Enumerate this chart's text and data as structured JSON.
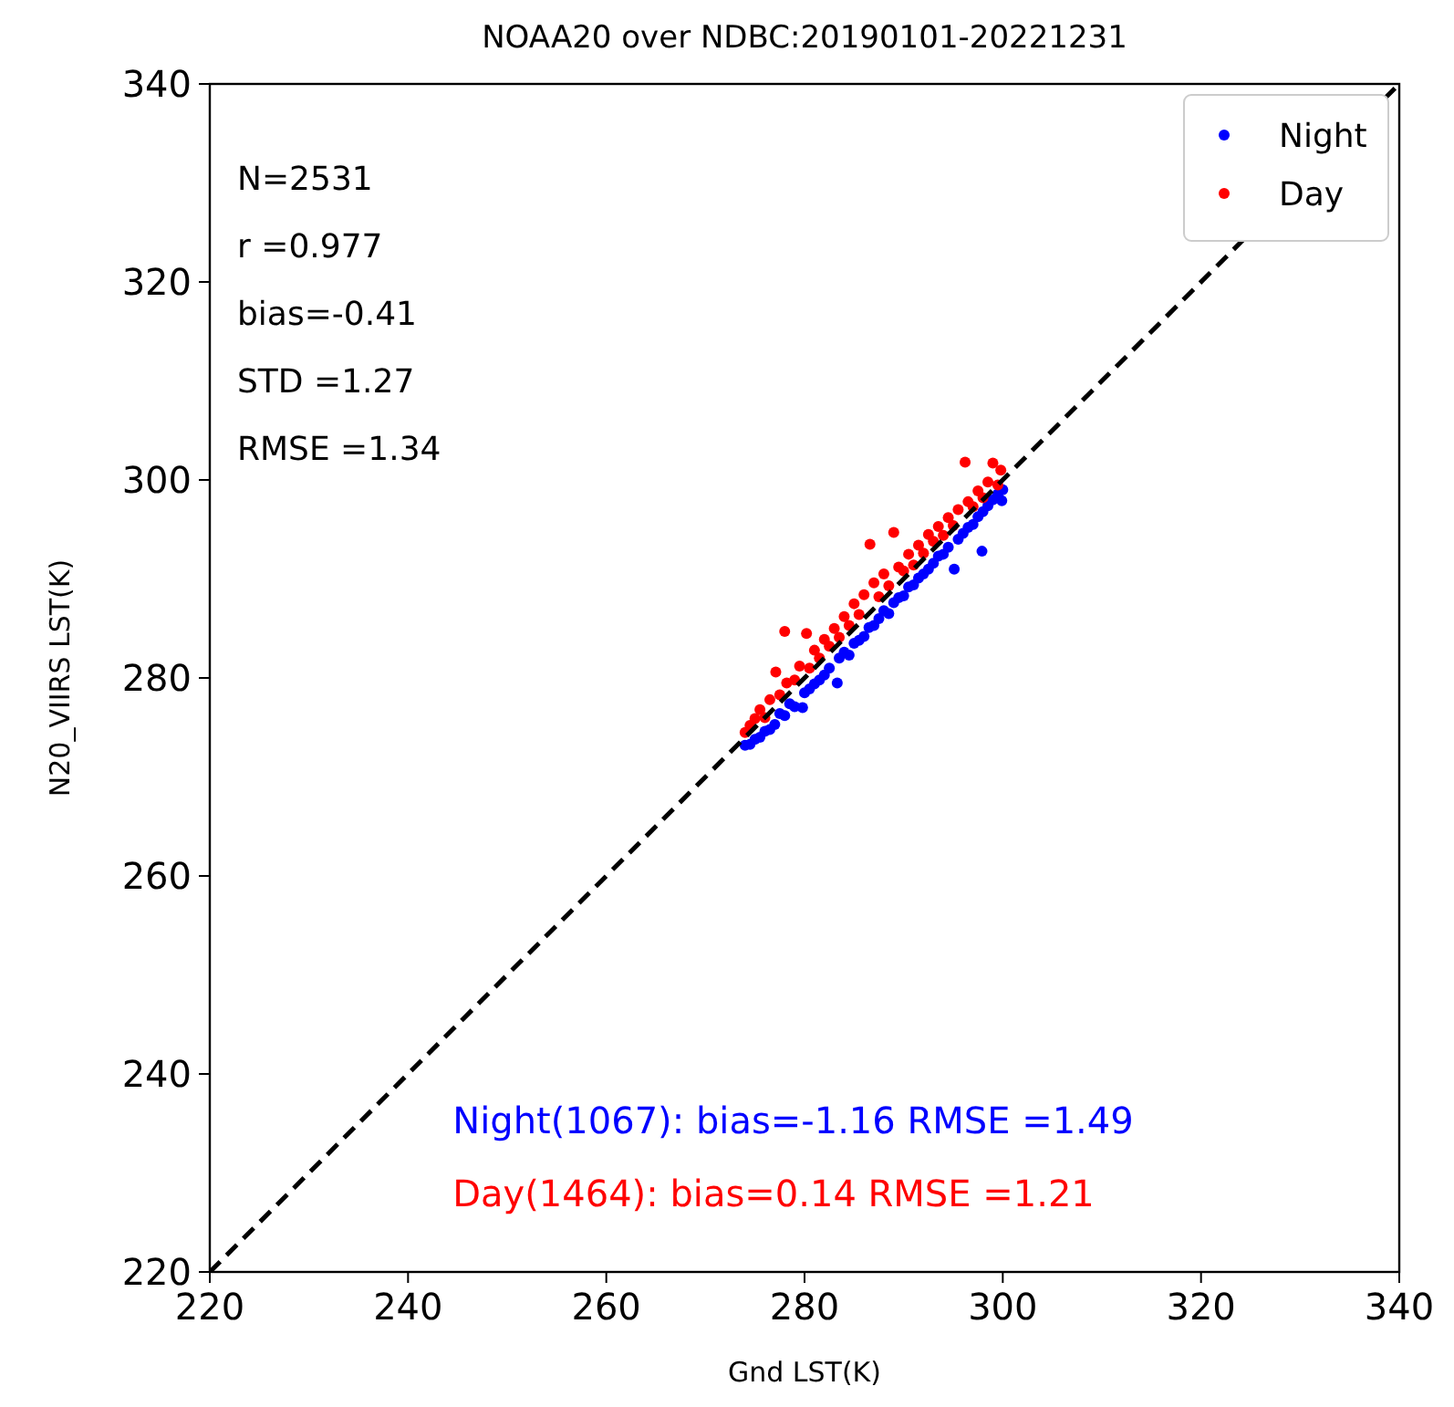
{
  "chart_data": {
    "type": "scatter",
    "title": "NOAA20 over NDBC:20190101-20221231",
    "xlabel": "Gnd LST(K)",
    "ylabel": "N20_VIIRS LST(K)",
    "xlim": [
      220,
      340
    ],
    "ylim": [
      220,
      340
    ],
    "xticks": [
      220,
      240,
      260,
      280,
      300,
      320,
      340
    ],
    "yticks": [
      220,
      240,
      260,
      280,
      300,
      320,
      340
    ],
    "grid": false,
    "legend": "top right",
    "marker": "circle",
    "annotations": [
      "N=2531",
      "r =0.977",
      "bias=-0.41",
      "STD =1.27",
      "RMSE =1.34",
      "Night(1067): bias=-1.16 RMSE =1.49",
      "Day(1464): bias=0.14 RMSE =1.21"
    ],
    "series": [
      {
        "name": "Night",
        "color": "#0000ff",
        "x": [
          274.0,
          274.5,
          275.0,
          275.5,
          276.0,
          276.5,
          277.0,
          277.5,
          278.0,
          278.5,
          279.0,
          279.8,
          280.0,
          280.5,
          281.0,
          281.5,
          282.0,
          282.5,
          283.3,
          283.5,
          284.0,
          284.5,
          285.0,
          285.5,
          286.0,
          286.5,
          287.0,
          287.5,
          288.0,
          288.5,
          289.0,
          289.5,
          290.0,
          290.5,
          291.0,
          291.5,
          292.0,
          292.5,
          293.0,
          293.5,
          294.0,
          294.5,
          295.1,
          295.5,
          296.0,
          296.5,
          297.0,
          297.5,
          297.9,
          298.0,
          298.5,
          299.0,
          299.5,
          299.9,
          300.0
        ],
        "values": [
          273.2,
          273.3,
          273.8,
          274.0,
          274.6,
          274.8,
          275.3,
          276.4,
          276.2,
          277.4,
          277.1,
          277.0,
          278.5,
          278.9,
          279.4,
          279.8,
          280.3,
          281.0,
          279.5,
          282.0,
          282.6,
          282.3,
          283.5,
          283.8,
          284.2,
          285.1,
          285.3,
          286.0,
          286.8,
          286.5,
          287.6,
          288.1,
          288.3,
          289.2,
          289.4,
          290.1,
          290.5,
          291.0,
          291.6,
          292.3,
          292.5,
          293.2,
          291.0,
          294.0,
          294.6,
          295.2,
          295.5,
          296.3,
          292.8,
          296.8,
          297.4,
          298.0,
          298.6,
          297.9,
          299.0
        ]
      },
      {
        "name": "Day",
        "color": "#ff0000",
        "x": [
          274.0,
          274.5,
          275.0,
          275.5,
          276.0,
          276.5,
          277.1,
          277.5,
          278.0,
          278.2,
          279.0,
          279.5,
          280.2,
          280.5,
          281.0,
          281.5,
          282.0,
          282.5,
          283.0,
          283.5,
          284.0,
          284.5,
          285.0,
          285.5,
          286.0,
          286.6,
          287.0,
          287.5,
          288.0,
          288.5,
          289.0,
          289.5,
          290.0,
          290.5,
          291.0,
          291.5,
          292.0,
          292.5,
          293.0,
          293.5,
          294.0,
          294.5,
          295.0,
          295.5,
          296.2,
          296.5,
          297.0,
          297.5,
          298.0,
          298.5,
          299.0,
          299.5,
          299.8
        ],
        "values": [
          274.5,
          275.2,
          275.9,
          276.8,
          276.0,
          277.8,
          280.6,
          278.3,
          284.7,
          279.5,
          279.8,
          281.2,
          284.5,
          281.0,
          282.8,
          282.0,
          283.9,
          283.2,
          285.0,
          284.1,
          286.2,
          285.3,
          287.5,
          286.4,
          288.4,
          293.5,
          289.6,
          288.2,
          290.5,
          289.3,
          294.7,
          291.2,
          290.8,
          292.5,
          291.4,
          293.4,
          292.6,
          294.5,
          293.8,
          295.3,
          294.4,
          296.2,
          295.4,
          297.0,
          301.8,
          297.8,
          297.3,
          298.9,
          298.2,
          299.8,
          301.7,
          299.5,
          301.0
        ]
      },
      {
        "type": "line",
        "color": "#000000",
        "line_style": "dashed",
        "marker": "none",
        "x": [
          220,
          340
        ],
        "values": [
          220,
          340
        ]
      }
    ]
  }
}
